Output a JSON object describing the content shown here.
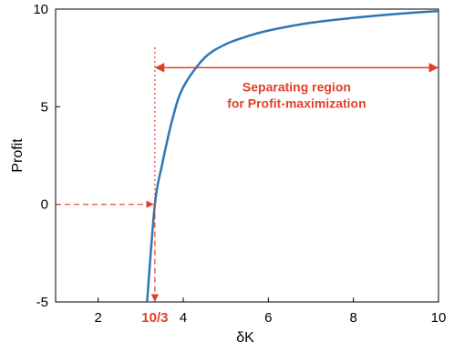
{
  "chart_data": {
    "type": "line",
    "xlabel": "δK",
    "ylabel": "Profit",
    "xlim": [
      1,
      10
    ],
    "ylim": [
      -5,
      10
    ],
    "x_ticks": [
      2,
      4,
      6,
      8,
      10
    ],
    "y_ticks": [
      -5,
      0,
      5,
      10
    ],
    "grid": false,
    "series": [
      {
        "x": [
          3.15,
          3.333,
          3.5,
          3.75,
          4.0,
          4.5,
          5.0,
          5.5,
          6.0,
          7.0,
          8.0,
          9.0,
          10.0
        ],
        "y": [
          -5.0,
          0.0,
          2.0,
          4.4,
          6.0,
          7.5,
          8.2,
          8.6,
          8.9,
          9.3,
          9.55,
          9.75,
          9.9
        ],
        "color": "#2E75B6"
      }
    ],
    "marker": {
      "x": 3.333,
      "label": "10/3",
      "color": "#E0402A"
    },
    "annotation": {
      "line1": "Separating region",
      "line2": "for Profit-maximization",
      "x_start": 3.333,
      "x_end": 10,
      "y": 7,
      "color": "#E0402A"
    }
  }
}
